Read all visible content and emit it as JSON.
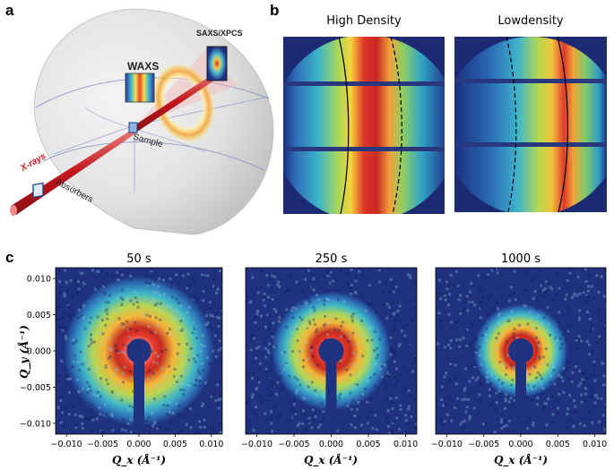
{
  "figure": {
    "panel_a": {
      "letter": "a",
      "labels": {
        "waxs": "WAXS",
        "saxs": "SAXS/XPCS",
        "sample": "Sample",
        "xrays": "X-rays",
        "absorbers": "Absorbers"
      }
    },
    "panel_b": {
      "letter": "b",
      "titles": [
        "High Density",
        "Lowdensity"
      ]
    },
    "panel_c": {
      "letter": "c",
      "titles": [
        "50 s",
        "250 s",
        "1000 s"
      ],
      "xlabel": "Q_x (Å⁻¹)",
      "ylabel": "Q_y (Å⁻¹)"
    }
  },
  "chart_data": [
    {
      "type": "heatmap",
      "title": "50 s",
      "xlabel": "Qx (Å⁻¹)",
      "ylabel": "Qy (Å⁻¹)",
      "xlim": [
        -0.0115,
        0.0115
      ],
      "ylim": [
        -0.0115,
        0.0115
      ],
      "xticks": [
        -0.01,
        -0.005,
        0.0,
        0.005,
        0.01
      ],
      "yticks": [
        -0.01,
        -0.005,
        0.0,
        0.005,
        0.01
      ],
      "xtick_labels": [
        "−0.010",
        "−0.005",
        "0.000",
        "0.005",
        "0.010"
      ],
      "ytick_labels": [
        "−0.010",
        "−0.005",
        "0.000",
        "0.005",
        "0.010"
      ],
      "ring_peak_radius": 0.0032,
      "ring_width": 0.0045,
      "beamstop_radius": 0.0017
    },
    {
      "type": "heatmap",
      "title": "250 s",
      "xlabel": "Qx (Å⁻¹)",
      "xlim": [
        -0.0115,
        0.0115
      ],
      "ylim": [
        -0.0115,
        0.0115
      ],
      "xticks": [
        -0.01,
        -0.005,
        0.0,
        0.005,
        0.01
      ],
      "xtick_labels": [
        "−0.010",
        "−0.005",
        "0.000",
        "0.005",
        "0.010"
      ],
      "ring_peak_radius": 0.0026,
      "ring_width": 0.0034,
      "beamstop_radius": 0.0017
    },
    {
      "type": "heatmap",
      "title": "1000 s",
      "xlabel": "Qx (Å⁻¹)",
      "xlim": [
        -0.0115,
        0.0115
      ],
      "ylim": [
        -0.0115,
        0.0115
      ],
      "xticks": [
        -0.01,
        -0.005,
        0.0,
        0.005,
        0.01
      ],
      "xtick_labels": [
        "−0.010",
        "−0.005",
        "0.000",
        "0.005",
        "0.010"
      ],
      "ring_peak_radius": 0.0022,
      "ring_width": 0.0026,
      "beamstop_radius": 0.0017
    }
  ]
}
